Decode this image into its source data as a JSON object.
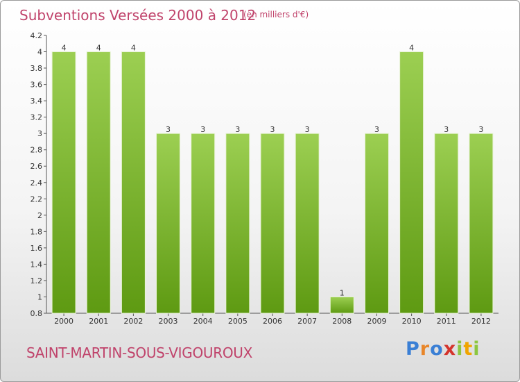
{
  "header": {
    "title": "Subventions Versées 2000 à 2012",
    "unit": "(en milliers d'€)"
  },
  "footer": {
    "commune": "SAINT-MARTIN-SOUS-VIGOUROUX",
    "brand_letters": [
      "P",
      "r",
      "o",
      "x",
      "i",
      "t",
      "i"
    ],
    "brand_colors": [
      "#3a7fd5",
      "#e8862a",
      "#3a7fd5",
      "#d4342c",
      "#8cc63f",
      "#f0a500",
      "#8cc63f"
    ]
  },
  "colors": {
    "bar_light": "#9ccf52",
    "bar_dark": "#5e9a12",
    "text": "#333333"
  },
  "chart_data": {
    "type": "bar",
    "categories": [
      "2000",
      "2001",
      "2002",
      "2003",
      "2004",
      "2005",
      "2006",
      "2007",
      "2008",
      "2009",
      "2010",
      "2011",
      "2012"
    ],
    "values": [
      4,
      4,
      4,
      3,
      3,
      3,
      3,
      3,
      1,
      3,
      4,
      3,
      3
    ],
    "data_labels": [
      "4",
      "4",
      "4",
      "3",
      "3",
      "3",
      "3",
      "3",
      "1",
      "3",
      "4",
      "3",
      "3"
    ],
    "title": "Subventions Versées 2000 à 2012",
    "ylim": [
      0.8,
      4.2
    ],
    "yticks": [
      0.8,
      1,
      1.2,
      1.4,
      1.6,
      1.8,
      2,
      2.2,
      2.4,
      2.6,
      2.8,
      3,
      3.2,
      3.4,
      3.6,
      3.8,
      4,
      4.2
    ],
    "ytick_labels": [
      "0.8",
      "1",
      "1.2",
      "1.4",
      "1.6",
      "1.8",
      "2",
      "2.2",
      "2.4",
      "2.6",
      "2.8",
      "3",
      "3.2",
      "3.4",
      "3.6",
      "3.8",
      "4",
      "4.2"
    ],
    "grid": false,
    "legend": "none"
  }
}
